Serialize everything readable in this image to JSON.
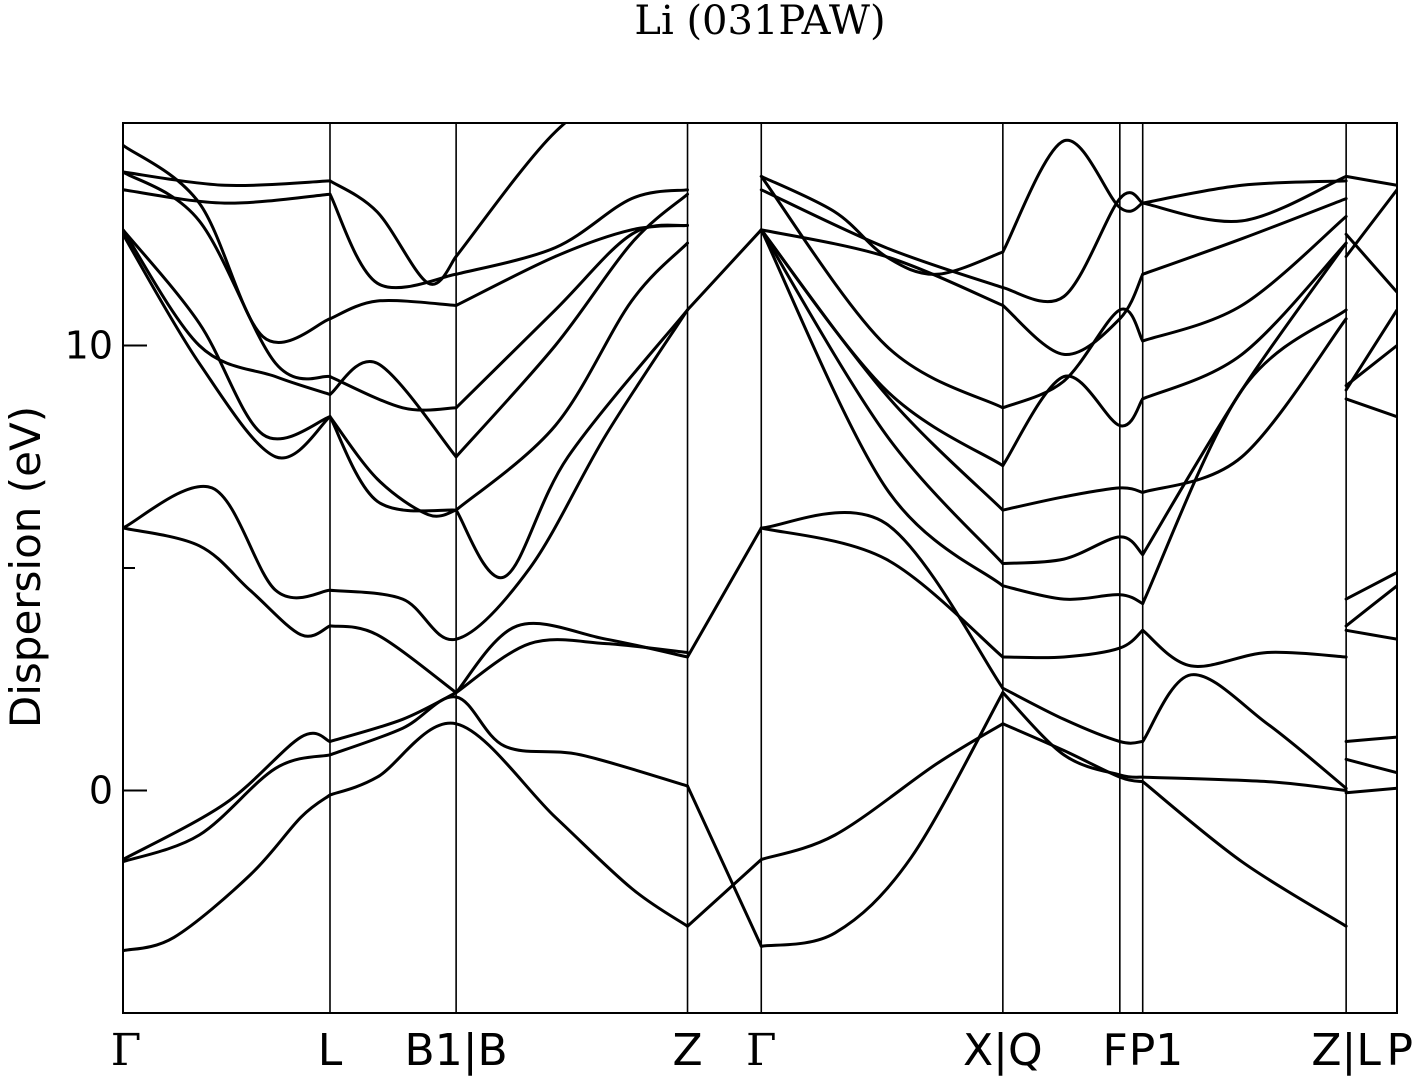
{
  "chart_data": {
    "type": "line",
    "title": "Li (031PAW)",
    "ylabel": "Dispersion (eV)",
    "xlabel": "",
    "ylim": [
      -5,
      15
    ],
    "y_ticks": [
      0,
      10
    ],
    "y_minor_ticks": [
      5
    ],
    "kpoint_labels": [
      {
        "label": "Γ",
        "x": 0.0
      },
      {
        "label": "L",
        "x": 0.814
      },
      {
        "label": "B1|B",
        "x": 1.31
      },
      {
        "label": "Z",
        "x": 2.22
      },
      {
        "label": "Γ",
        "x": 2.51
      },
      {
        "label": "X|Q",
        "x": 3.46
      },
      {
        "label": "F",
        "x": 3.92
      },
      {
        "label": "P1",
        "x": 4.01
      },
      {
        "label": "Z|L",
        "x": 4.81
      },
      {
        "label": "P",
        "x": 5.01
      }
    ],
    "xlim": [
      0,
      5.01
    ],
    "series": [
      {
        "x": [
          0.0,
          0.2,
          0.5,
          0.7,
          0.814
        ],
        "values": [
          -3.6,
          -3.3,
          -1.9,
          -0.6,
          -0.1
        ]
      },
      {
        "x": [
          0.814,
          1.0,
          1.31,
          1.7,
          2.0,
          2.22
        ],
        "values": [
          -0.1,
          0.3,
          1.5,
          -0.6,
          -2.2,
          -3.05
        ]
      },
      {
        "x": [
          2.22,
          2.51
        ],
        "values": [
          -3.05,
          -1.55
        ]
      },
      {
        "x": [
          2.51,
          2.8,
          3.2,
          3.46
        ],
        "values": [
          -1.55,
          -1.0,
          0.6,
          1.5
        ]
      },
      {
        "x": [
          3.46,
          3.7,
          3.92,
          4.01
        ],
        "values": [
          1.5,
          0.9,
          0.3,
          0.2
        ]
      },
      {
        "x": [
          4.01,
          4.4,
          4.81
        ],
        "values": [
          0.2,
          -1.6,
          -3.05
        ]
      },
      {
        "x": [
          4.81,
          5.01
        ],
        "values": [
          -0.05,
          0.05
        ]
      },
      {
        "x": [
          0.0,
          0.3,
          0.6,
          0.814
        ],
        "values": [
          -1.6,
          -1.0,
          0.5,
          0.8
        ]
      },
      {
        "x": [
          0.814,
          1.1,
          1.31,
          1.5,
          1.8,
          2.22
        ],
        "values": [
          0.8,
          1.4,
          2.1,
          1.0,
          0.8,
          0.1
        ]
      },
      {
        "x": [
          2.22,
          2.51
        ],
        "values": [
          0.1,
          -3.5
        ]
      },
      {
        "x": [
          2.51,
          2.8,
          3.1,
          3.46
        ],
        "values": [
          -3.5,
          -3.2,
          -1.5,
          2.2
        ]
      },
      {
        "x": [
          3.46,
          3.7,
          3.92,
          4.01
        ],
        "values": [
          2.2,
          0.8,
          0.35,
          0.3
        ]
      },
      {
        "x": [
          4.01,
          4.5,
          4.81
        ],
        "values": [
          0.3,
          0.2,
          0.0
        ]
      },
      {
        "x": [
          4.81,
          5.01
        ],
        "values": [
          0.7,
          0.4
        ]
      },
      {
        "x": [
          0.0,
          0.4,
          0.7,
          0.814
        ],
        "values": [
          -1.55,
          -0.3,
          1.2,
          1.1
        ]
      },
      {
        "x": [
          0.814,
          1.1,
          1.31
        ],
        "values": [
          1.1,
          1.6,
          2.2
        ]
      },
      {
        "x": [
          1.31,
          1.55,
          1.9,
          2.22
        ],
        "values": [
          2.2,
          3.7,
          3.4,
          3.0
        ]
      },
      {
        "x": [
          2.22,
          2.51
        ],
        "values": [
          3.0,
          5.9
        ]
      },
      {
        "x": [
          2.51,
          3.0,
          3.46
        ],
        "values": [
          5.9,
          6.0,
          2.3
        ]
      },
      {
        "x": [
          3.46,
          3.7,
          3.92,
          4.01
        ],
        "values": [
          2.3,
          1.6,
          1.1,
          1.1
        ]
      },
      {
        "x": [
          4.01,
          4.2,
          4.5,
          4.81
        ],
        "values": [
          1.1,
          2.6,
          1.5,
          0.05
        ]
      },
      {
        "x": [
          4.81,
          5.01
        ],
        "values": [
          1.1,
          1.2
        ]
      },
      {
        "x": [
          0.0,
          0.3,
          0.5,
          0.7,
          0.814
        ],
        "values": [
          5.9,
          5.5,
          4.5,
          3.5,
          3.7
        ]
      },
      {
        "x": [
          0.814,
          1.0,
          1.31
        ],
        "values": [
          3.7,
          3.5,
          2.2
        ]
      },
      {
        "x": [
          1.31,
          1.6,
          1.9,
          2.22
        ],
        "values": [
          2.2,
          3.3,
          3.3,
          3.1
        ]
      },
      {
        "x": [
          2.51,
          3.0,
          3.46
        ],
        "values": [
          5.9,
          5.2,
          3.0
        ]
      },
      {
        "x": [
          3.46,
          3.7,
          3.92,
          4.01
        ],
        "values": [
          3.0,
          3.0,
          3.2,
          3.6
        ]
      },
      {
        "x": [
          4.01,
          4.2,
          4.5,
          4.81
        ],
        "values": [
          3.6,
          2.8,
          3.1,
          3.0
        ]
      },
      {
        "x": [
          4.81,
          5.01
        ],
        "values": [
          3.6,
          3.4
        ]
      },
      {
        "x": [
          0.0,
          0.35,
          0.6,
          0.814
        ],
        "values": [
          5.9,
          6.8,
          4.5,
          4.5
        ]
      },
      {
        "x": [
          0.814,
          1.1,
          1.31,
          1.6,
          1.9,
          2.22
        ],
        "values": [
          4.5,
          4.3,
          3.4,
          5.0,
          8.0,
          10.8
        ]
      },
      {
        "x": [
          2.22,
          2.51
        ],
        "values": [
          10.8,
          12.6
        ]
      },
      {
        "x": [
          2.51,
          3.0,
          3.46
        ],
        "values": [
          12.6,
          6.8,
          4.6
        ]
      },
      {
        "x": [
          3.46,
          3.7,
          3.92,
          4.01
        ],
        "values": [
          4.6,
          4.3,
          4.4,
          4.2
        ]
      },
      {
        "x": [
          4.01,
          4.4,
          4.81
        ],
        "values": [
          4.2,
          9.0,
          10.8
        ]
      },
      {
        "x": [
          4.81,
          5.01
        ],
        "values": [
          3.7,
          4.6
        ]
      },
      {
        "x": [
          0.0,
          0.3,
          0.55,
          0.814
        ],
        "values": [
          12.6,
          10.5,
          8.0,
          8.4
        ]
      },
      {
        "x": [
          0.814,
          1.0,
          1.2,
          1.31
        ],
        "values": [
          8.4,
          7.0,
          6.2,
          6.3
        ]
      },
      {
        "x": [
          1.31,
          1.5,
          1.75,
          2.22
        ],
        "values": [
          6.3,
          4.8,
          7.5,
          10.8
        ]
      },
      {
        "x": [
          2.51,
          3.0,
          3.46
        ],
        "values": [
          12.6,
          8.0,
          5.1
        ]
      },
      {
        "x": [
          3.46,
          3.7,
          3.92,
          4.01
        ],
        "values": [
          5.1,
          5.2,
          5.7,
          5.3
        ]
      },
      {
        "x": [
          4.01,
          4.4,
          4.81
        ],
        "values": [
          5.3,
          9.0,
          12.3
        ]
      },
      {
        "x": [
          4.81,
          5.01
        ],
        "values": [
          4.3,
          4.9
        ]
      },
      {
        "x": [
          0.0,
          0.3,
          0.6,
          0.814
        ],
        "values": [
          12.5,
          9.6,
          7.5,
          8.4
        ]
      },
      {
        "x": [
          0.814,
          1.0,
          1.31
        ],
        "values": [
          8.4,
          6.5,
          6.3
        ]
      },
      {
        "x": [
          1.31,
          1.7,
          2.0,
          2.22
        ],
        "values": [
          6.3,
          8.2,
          11.0,
          12.3
        ]
      },
      {
        "x": [
          2.51,
          3.0,
          3.46
        ],
        "values": [
          12.6,
          8.9,
          6.3
        ]
      },
      {
        "x": [
          3.46,
          3.7,
          3.92,
          4.01
        ],
        "values": [
          6.3,
          6.6,
          6.8,
          6.7
        ]
      },
      {
        "x": [
          4.01,
          4.4,
          4.81
        ],
        "values": [
          6.7,
          7.5,
          10.6
        ]
      },
      {
        "x": [
          4.81,
          5.01
        ],
        "values": [
          9.1,
          10.0
        ]
      },
      {
        "x": [
          0.0,
          0.3,
          0.6,
          0.814
        ],
        "values": [
          12.6,
          10.0,
          9.3,
          8.9
        ]
      },
      {
        "x": [
          0.814,
          1.0,
          1.31
        ],
        "values": [
          8.9,
          9.6,
          7.5
        ]
      },
      {
        "x": [
          1.31,
          1.7,
          2.0,
          2.22
        ],
        "values": [
          7.5,
          10.0,
          12.3,
          13.4
        ]
      },
      {
        "x": [
          2.51,
          3.0,
          3.46
        ],
        "values": [
          12.6,
          9.0,
          7.3
        ]
      },
      {
        "x": [
          3.46,
          3.7,
          3.92,
          4.01
        ],
        "values": [
          7.3,
          9.3,
          8.2,
          8.8
        ]
      },
      {
        "x": [
          4.01,
          4.4,
          4.81
        ],
        "values": [
          8.8,
          9.8,
          12.3
        ]
      },
      {
        "x": [
          4.81,
          5.01
        ],
        "values": [
          9.0,
          10.8
        ]
      },
      {
        "x": [
          0.0,
          0.3,
          0.6,
          0.814
        ],
        "values": [
          13.9,
          12.8,
          9.6,
          9.3
        ]
      },
      {
        "x": [
          0.814,
          1.1,
          1.31
        ],
        "values": [
          9.3,
          8.6,
          8.6
        ]
      },
      {
        "x": [
          1.31,
          1.7,
          2.0,
          2.22
        ],
        "values": [
          8.6,
          10.8,
          12.5,
          12.7
        ]
      },
      {
        "x": [
          2.51,
          3.0,
          3.46
        ],
        "values": [
          13.8,
          10.0,
          8.6
        ]
      },
      {
        "x": [
          3.46,
          3.7,
          3.92,
          4.01
        ],
        "values": [
          8.6,
          9.2,
          10.8,
          10.1
        ]
      },
      {
        "x": [
          4.01,
          4.4,
          4.81
        ],
        "values": [
          10.1,
          10.9,
          12.9
        ]
      },
      {
        "x": [
          4.81,
          5.01
        ],
        "values": [
          8.8,
          8.4
        ]
      },
      {
        "x": [
          0.0,
          0.3,
          0.55,
          0.814
        ],
        "values": [
          14.5,
          13.2,
          10.2,
          10.6
        ]
      },
      {
        "x": [
          0.814,
          1.0,
          1.31
        ],
        "values": [
          10.6,
          11.0,
          10.9
        ]
      },
      {
        "x": [
          1.31,
          1.7,
          2.0,
          2.22
        ],
        "values": [
          10.9,
          12.0,
          12.6,
          12.7
        ]
      },
      {
        "x": [
          2.51,
          3.0,
          3.46
        ],
        "values": [
          12.6,
          12.0,
          10.9
        ]
      },
      {
        "x": [
          3.46,
          3.7,
          3.92,
          4.01
        ],
        "values": [
          10.9,
          9.8,
          10.6,
          11.6
        ]
      },
      {
        "x": [
          4.01,
          4.4,
          4.81
        ],
        "values": [
          11.6,
          12.4,
          13.3
        ]
      },
      {
        "x": [
          4.81,
          5.01
        ],
        "values": [
          12.5,
          11.2
        ]
      },
      {
        "x": [
          0.0,
          0.4,
          0.814
        ],
        "values": [
          13.5,
          13.2,
          13.4
        ]
      },
      {
        "x": [
          0.814,
          1.0,
          1.31
        ],
        "values": [
          13.4,
          11.4,
          11.6
        ]
      },
      {
        "x": [
          1.31,
          1.7,
          2.0,
          2.22
        ],
        "values": [
          11.6,
          12.2,
          13.3,
          13.5
        ]
      },
      {
        "x": [
          2.51,
          3.0,
          3.46
        ],
        "values": [
          13.5,
          12.2,
          11.3
        ]
      },
      {
        "x": [
          3.46,
          3.7,
          3.92,
          4.01
        ],
        "values": [
          11.3,
          11.1,
          13.3,
          13.2
        ]
      },
      {
        "x": [
          4.01,
          4.4,
          4.81
        ],
        "values": [
          13.2,
          12.8,
          13.8
        ]
      },
      {
        "x": [
          4.81,
          5.01
        ],
        "values": [
          13.8,
          13.6
        ]
      },
      {
        "x": [
          0.0,
          0.4,
          0.814
        ],
        "values": [
          13.9,
          13.6,
          13.7
        ]
      },
      {
        "x": [
          0.814,
          1.0,
          1.2,
          1.31
        ],
        "values": [
          13.7,
          13.0,
          11.4,
          12.0
        ]
      },
      {
        "x": [
          1.31,
          1.7,
          2.0,
          2.22
        ],
        "values": [
          12.0,
          14.8,
          15.8,
          15.2
        ]
      },
      {
        "x": [
          2.51,
          2.8,
          3.0,
          3.2,
          3.46
        ],
        "values": [
          13.8,
          13.0,
          12.0,
          11.6,
          12.1
        ]
      },
      {
        "x": [
          3.46,
          3.7,
          3.92,
          4.01
        ],
        "values": [
          12.1,
          14.6,
          13.1,
          13.2
        ]
      },
      {
        "x": [
          4.01,
          4.4,
          4.81
        ],
        "values": [
          13.2,
          13.6,
          13.7
        ]
      },
      {
        "x": [
          4.81,
          5.01
        ],
        "values": [
          12.0,
          13.5
        ]
      }
    ]
  }
}
